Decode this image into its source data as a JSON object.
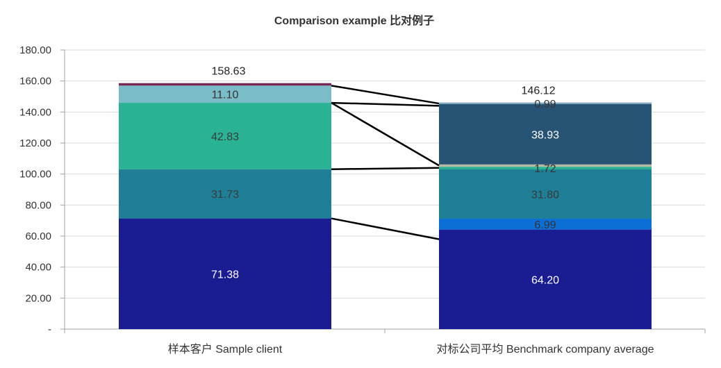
{
  "chart_data": {
    "type": "bar",
    "stacked": true,
    "title": "Comparison example 比对例子",
    "xlabel": "",
    "ylabel": "",
    "ylim": [
      0,
      180
    ],
    "yticks": [
      "-",
      "20.00",
      "40.00",
      "60.00",
      "80.00",
      "100.00",
      "120.00",
      "140.00",
      "160.00",
      "180.00"
    ],
    "grid": true,
    "categories": [
      "样本客户 Sample client",
      "对标公司平均 Benchmark company average"
    ],
    "totals": [
      "158.63",
      "146.12"
    ],
    "stacks": [
      [
        {
          "value": 71.38,
          "label": "71.38",
          "color": "#1a1c92",
          "label_color": "#ffffff"
        },
        {
          "value": 31.73,
          "label": "31.73",
          "color": "#1e7f96",
          "label_color": "#3a3a3a"
        },
        {
          "value": 42.83,
          "label": "42.83",
          "color": "#2ab295",
          "label_color": "#3a3a3a"
        },
        {
          "value": 11.1,
          "label": "11.10",
          "color": "#7abdc9",
          "label_color": "#333333"
        },
        {
          "value": 1.59,
          "label": "",
          "color": "#742a55",
          "label_color": "#333333"
        }
      ],
      [
        {
          "value": 64.2,
          "label": "64.20",
          "color": "#1a1c92",
          "label_color": "#ffffff"
        },
        {
          "value": 6.99,
          "label": "6.99",
          "color": "#0b6fd6",
          "label_color": "#333333"
        },
        {
          "value": 31.8,
          "label": "31.80",
          "color": "#1e7f96",
          "label_color": "#3a3a3a"
        },
        {
          "value": 1.72,
          "label": "1.72",
          "color": "#2ab295",
          "label_color": "#333333"
        },
        {
          "value": 1.49,
          "label": "",
          "color": "#b5b9a0",
          "label_color": "#333333"
        },
        {
          "value": 38.93,
          "label": "38.93",
          "color": "#275474",
          "label_color": "#ffffff"
        },
        {
          "value": 0.99,
          "label": "0.99",
          "color": "#7aa4bd",
          "label_color": "#333333"
        }
      ]
    ],
    "connectors": [
      {
        "from": 71.38,
        "to": 58.0
      },
      {
        "from": 103.11,
        "to": 104.0
      },
      {
        "from": 145.94,
        "to": 105.5
      },
      {
        "from": 145.94,
        "to": 144.0
      },
      {
        "from": 157.0,
        "to": 145.5
      }
    ]
  }
}
